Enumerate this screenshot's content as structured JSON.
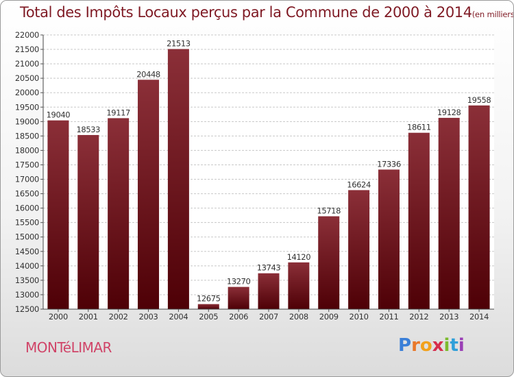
{
  "chart_data": {
    "type": "bar",
    "title": "Total des Impôts Locaux perçus par la Commune de 2000 à 2014",
    "subtitle": "(en milliers d'€)",
    "xlabel": "",
    "ylabel": "",
    "categories": [
      "2000",
      "2001",
      "2002",
      "2003",
      "2004",
      "2005",
      "2006",
      "2007",
      "2008",
      "2009",
      "2010",
      "2011",
      "2012",
      "2013",
      "2014"
    ],
    "values": [
      19040,
      18533,
      19117,
      20448,
      21513,
      12675,
      13270,
      13743,
      14120,
      15718,
      16624,
      17336,
      18611,
      19128,
      19558
    ],
    "ylim": [
      12500,
      22000
    ],
    "yticks": [
      12500,
      13000,
      13500,
      14000,
      14500,
      15000,
      15500,
      16000,
      16500,
      17000,
      17500,
      18000,
      18500,
      19000,
      19500,
      20000,
      20500,
      21000,
      21500,
      22000
    ],
    "grid": true,
    "bar_color_top": "#8b2f38",
    "bar_color_bottom": "#4e0006"
  },
  "footer": {
    "commune": "MONTéLIMAR",
    "logo_letters": [
      "P",
      "r",
      "o",
      "x",
      "i",
      "t",
      "i"
    ],
    "logo_colors": [
      "#3a7fd8",
      "#e9782a",
      "#f2a11c",
      "#d62d4d",
      "#7cba2e",
      "#2f9fd9",
      "#9a3fb6"
    ]
  }
}
